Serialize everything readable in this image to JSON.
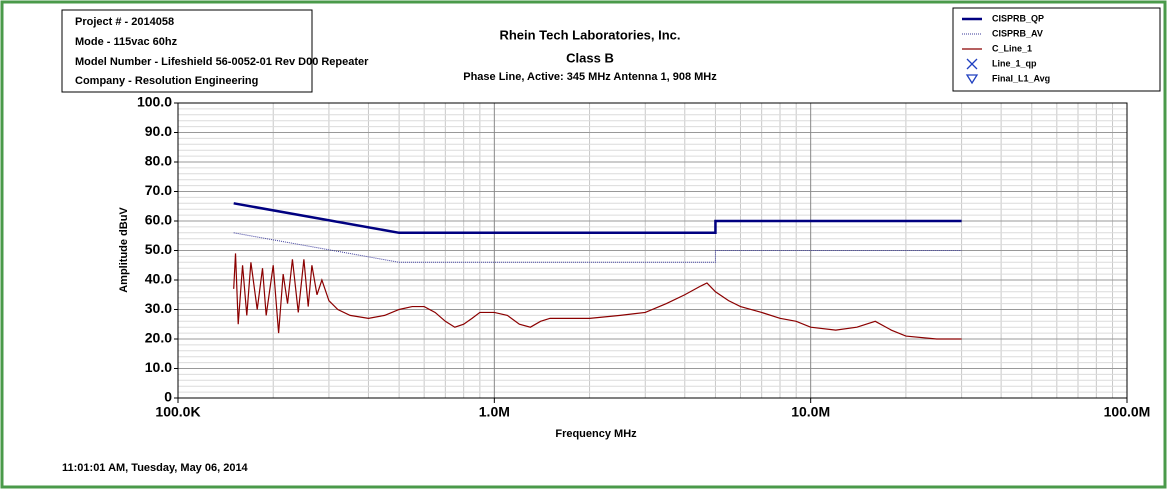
{
  "chart_data": {
    "type": "line",
    "title": "Rhein Tech Laboratories, Inc.",
    "subtitle": "Class B",
    "description": "Phase Line, Active: 345 MHz Antenna 1, 908 MHz",
    "info": [
      "Project # - 2014058",
      "Mode - 115vac 60hz",
      "Model Number - Lifeshield 56-0052-01 Rev D00 Repeater",
      "Company - Resolution Engineering"
    ],
    "footer": "11:01:01 AM, Tuesday, May 06, 2014",
    "x_label": "Frequency MHz",
    "y_label": "Amplitude dBuV",
    "xscale": "log",
    "xlim": [
      100000,
      100000000
    ],
    "xticks": [
      {
        "value": 100000,
        "label": "100.0K"
      },
      {
        "value": 1000000,
        "label": "1.0M"
      },
      {
        "value": 10000000,
        "label": "10.0M"
      },
      {
        "value": 100000000,
        "label": "100.0M"
      }
    ],
    "ylim": [
      0,
      100
    ],
    "yticks": [
      0,
      {
        "value": 10,
        "label": "10.0"
      },
      {
        "value": 20,
        "label": "20.0"
      },
      {
        "value": 30,
        "label": "30.0"
      },
      {
        "value": 40,
        "label": "40.0"
      },
      {
        "value": 50,
        "label": "50.0"
      },
      {
        "value": 60,
        "label": "60.0"
      },
      {
        "value": 70,
        "label": "70.0"
      },
      {
        "value": 80,
        "label": "80.0"
      },
      {
        "value": 90,
        "label": "90.0"
      },
      {
        "value": 100,
        "label": "100.0"
      }
    ],
    "grid": true,
    "legend": "top-right",
    "series": [
      {
        "name": "CISPRB_QP",
        "color": "#000080",
        "style": "solid",
        "x": [
          150000,
          500000,
          5000000,
          5000000,
          30000000
        ],
        "values": [
          66,
          56,
          56,
          60,
          60
        ]
      },
      {
        "name": "CISPRB_AV",
        "color": "#3a3a9a",
        "style": "dotted",
        "x": [
          150000,
          500000,
          5000000,
          5000000,
          30000000
        ],
        "values": [
          56,
          46,
          46,
          50,
          50
        ]
      },
      {
        "name": "C_Line_1",
        "color": "#8b0000",
        "style": "thin",
        "x": [
          150000,
          152000,
          155000,
          160000,
          165000,
          170000,
          178000,
          185000,
          190000,
          200000,
          208000,
          215000,
          222000,
          230000,
          240000,
          250000,
          258000,
          265000,
          275000,
          285000,
          300000,
          320000,
          350000,
          400000,
          450000,
          500000,
          550000,
          600000,
          650000,
          700000,
          750000,
          800000,
          850000,
          900000,
          1000000,
          1100000,
          1200000,
          1300000,
          1400000,
          1500000,
          1700000,
          2000000,
          2500000,
          3000000,
          3500000,
          4000000,
          4500000,
          4700000,
          5000000,
          5500000,
          6000000,
          7000000,
          8000000,
          9000000,
          10000000,
          12000000,
          14000000,
          16000000,
          18000000,
          20000000,
          25000000,
          30000000
        ],
        "values": [
          37,
          49,
          25,
          45,
          28,
          46,
          30,
          44,
          28,
          45,
          22,
          42,
          32,
          47,
          29,
          47,
          31,
          45,
          35,
          40,
          33,
          30,
          28,
          27,
          28,
          30,
          31,
          31,
          29,
          26,
          24,
          25,
          27,
          29,
          29,
          28,
          25,
          24,
          26,
          27,
          27,
          27,
          28,
          29,
          32,
          35,
          38,
          39,
          36,
          33,
          31,
          29,
          27,
          26,
          24,
          23,
          24,
          26,
          23,
          21,
          20,
          20
        ]
      },
      {
        "name": "Line_1_qp",
        "color": "#2040c0",
        "style": "marker-x",
        "x": [],
        "values": []
      },
      {
        "name": "Final_L1_Avg",
        "color": "#2040c0",
        "style": "marker-triangle",
        "x": [],
        "values": []
      }
    ]
  }
}
